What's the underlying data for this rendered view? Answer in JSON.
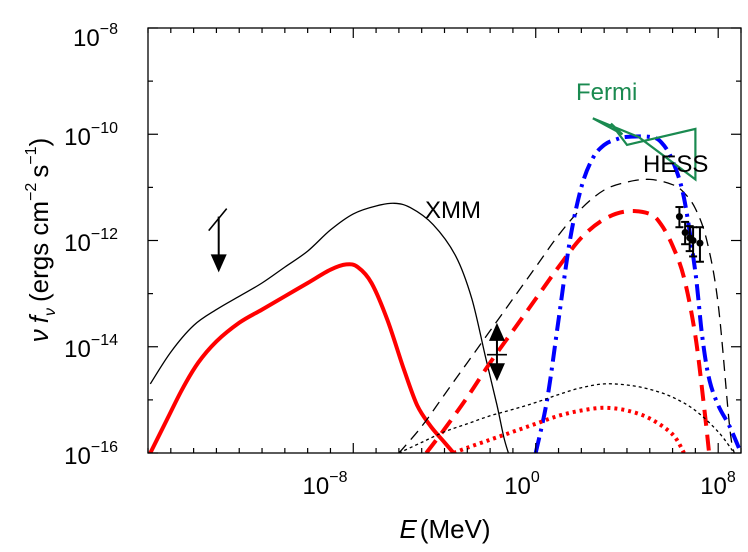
{
  "chart_data": {
    "type": "line",
    "xlabel": {
      "symbol": "E",
      "unit": "(MeV)"
    },
    "ylabel": {
      "nu": "ν",
      "f": "f",
      "sub": "ν",
      "units_open": "(ergs cm",
      "exp_cm": "−2",
      "s": "s",
      "exp_s": "−1",
      "units_close": ")"
    },
    "xscale": "log",
    "yscale": "log",
    "xlim_log10": [
      -17,
      9
    ],
    "ylim_log10": [
      -16,
      -8
    ],
    "x_ticks": [
      {
        "base": "10",
        "exp": "−8",
        "log10": -8
      },
      {
        "base": "10",
        "exp": "0",
        "log10": 0
      },
      {
        "base": "10",
        "exp": "8",
        "log10": 8
      }
    ],
    "y_ticks": [
      {
        "base": "10",
        "exp": "−8",
        "log10": -8
      },
      {
        "base": "10",
        "exp": "−10",
        "log10": -10
      },
      {
        "base": "10",
        "exp": "−12",
        "log10": -12
      },
      {
        "base": "10",
        "exp": "−14",
        "log10": -14
      },
      {
        "base": "10",
        "exp": "−16",
        "log10": -16
      }
    ],
    "grid": false,
    "annotations": [
      {
        "id": "xmm",
        "text": "XMM",
        "color": "#000000"
      },
      {
        "id": "fermi",
        "text": "Fermi",
        "color": "#1a8a50"
      },
      {
        "id": "hess",
        "text": "HESS",
        "color": "#000000"
      }
    ],
    "series": [
      {
        "id": "total-solid",
        "color": "#000000",
        "width": 1.3,
        "dash": "",
        "points": [
          [
            -16.9,
            -14.7
          ],
          [
            -16,
            -14.1
          ],
          [
            -15,
            -13.6
          ],
          [
            -14,
            -13.3
          ],
          [
            -13,
            -13.05
          ],
          [
            -12,
            -12.8
          ],
          [
            -11,
            -12.5
          ],
          [
            -10,
            -12.2
          ],
          [
            -9,
            -11.8
          ],
          [
            -8,
            -11.5
          ],
          [
            -7,
            -11.35
          ],
          [
            -6.2,
            -11.3
          ],
          [
            -5.5,
            -11.38
          ],
          [
            -4.5,
            -11.7
          ],
          [
            -3.5,
            -12.3
          ],
          [
            -2.8,
            -13.1
          ],
          [
            -2.2,
            -14.2
          ],
          [
            -1.7,
            -15.1
          ],
          [
            -1.4,
            -15.7
          ],
          [
            -1.2,
            -16
          ]
        ]
      },
      {
        "id": "synchrotron-red",
        "color": "#ff0000",
        "width": 4,
        "dash": "",
        "points": [
          [
            -16.9,
            -16
          ],
          [
            -16.2,
            -15.4
          ],
          [
            -15.5,
            -14.8
          ],
          [
            -14.8,
            -14.3
          ],
          [
            -14,
            -13.9
          ],
          [
            -13,
            -13.55
          ],
          [
            -12,
            -13.3
          ],
          [
            -11,
            -13.05
          ],
          [
            -10,
            -12.8
          ],
          [
            -9,
            -12.55
          ],
          [
            -8.3,
            -12.45
          ],
          [
            -7.8,
            -12.5
          ],
          [
            -7.2,
            -12.8
          ],
          [
            -6.5,
            -13.5
          ],
          [
            -5.8,
            -14.4
          ],
          [
            -5.2,
            -15.1
          ],
          [
            -4.6,
            -15.5
          ],
          [
            -4.0,
            -15.8
          ],
          [
            -3.6,
            -16
          ]
        ]
      },
      {
        "id": "ic-black-dashed",
        "color": "#000000",
        "width": 1.3,
        "dash": "11,7",
        "points": [
          [
            -6,
            -16
          ],
          [
            -5,
            -15.5
          ],
          [
            -4,
            -14.9
          ],
          [
            -3,
            -14.3
          ],
          [
            -2,
            -13.7
          ],
          [
            -1,
            -13.1
          ],
          [
            0,
            -12.5
          ],
          [
            1,
            -11.9
          ],
          [
            2,
            -11.4
          ],
          [
            3,
            -11.05
          ],
          [
            4,
            -10.9
          ],
          [
            5,
            -10.85
          ],
          [
            6,
            -10.95
          ],
          [
            6.5,
            -11.1
          ],
          [
            7,
            -11.4
          ],
          [
            7.5,
            -12
          ],
          [
            8,
            -13.2
          ],
          [
            8.5,
            -15.5
          ],
          [
            8.7,
            -16
          ]
        ]
      },
      {
        "id": "ic-red-dashed",
        "color": "#ff0000",
        "width": 4,
        "dash": "16,9",
        "points": [
          [
            -4.8,
            -16
          ],
          [
            -4,
            -15.55
          ],
          [
            -3,
            -14.95
          ],
          [
            -2,
            -14.3
          ],
          [
            -1,
            -13.7
          ],
          [
            0,
            -13.1
          ],
          [
            1,
            -12.5
          ],
          [
            2,
            -11.95
          ],
          [
            3,
            -11.6
          ],
          [
            4,
            -11.45
          ],
          [
            5,
            -11.5
          ],
          [
            5.5,
            -11.7
          ],
          [
            6,
            -12.1
          ],
          [
            6.5,
            -12.7
          ],
          [
            7,
            -13.8
          ],
          [
            7.4,
            -15.2
          ],
          [
            7.6,
            -16
          ]
        ]
      },
      {
        "id": "pion-blue-dashdot",
        "color": "#0000ff",
        "width": 4,
        "dash": "16,6,3,6",
        "points": [
          [
            0,
            -16
          ],
          [
            0.5,
            -15
          ],
          [
            1,
            -13.5
          ],
          [
            1.5,
            -12
          ],
          [
            2,
            -11
          ],
          [
            2.5,
            -10.45
          ],
          [
            3,
            -10.2
          ],
          [
            3.5,
            -10.1
          ],
          [
            4,
            -10.05
          ],
          [
            5,
            -10.05
          ],
          [
            5.5,
            -10.15
          ],
          [
            6,
            -10.5
          ],
          [
            6.5,
            -11.2
          ],
          [
            7,
            -12.6
          ],
          [
            7.3,
            -13.8
          ],
          [
            7.6,
            -14.6
          ],
          [
            8,
            -15.1
          ],
          [
            8.5,
            -15.5
          ],
          [
            9,
            -16
          ]
        ]
      },
      {
        "id": "bremss-black-dotted",
        "color": "#000000",
        "width": 1.3,
        "dash": "3,3",
        "points": [
          [
            -6,
            -16
          ],
          [
            -5,
            -15.8
          ],
          [
            -4,
            -15.6
          ],
          [
            -3,
            -15.45
          ],
          [
            -2,
            -15.3
          ],
          [
            -1,
            -15.18
          ],
          [
            0,
            -15.05
          ],
          [
            1,
            -14.9
          ],
          [
            2,
            -14.77
          ],
          [
            3,
            -14.7
          ],
          [
            4,
            -14.72
          ],
          [
            5,
            -14.8
          ],
          [
            6,
            -14.95
          ],
          [
            7,
            -15.2
          ],
          [
            8,
            -15.6
          ],
          [
            8.7,
            -16
          ]
        ]
      },
      {
        "id": "bremss-red-dotted",
        "color": "#ff0000",
        "width": 4,
        "dash": "3,4",
        "points": [
          [
            -3.6,
            -16
          ],
          [
            -3,
            -15.9
          ],
          [
            -2,
            -15.75
          ],
          [
            -1,
            -15.6
          ],
          [
            0,
            -15.45
          ],
          [
            1,
            -15.3
          ],
          [
            2,
            -15.2
          ],
          [
            3,
            -15.15
          ],
          [
            4,
            -15.2
          ],
          [
            5,
            -15.35
          ],
          [
            6,
            -15.65
          ],
          [
            6.5,
            -16
          ]
        ]
      }
    ],
    "fermi_butterfly": {
      "color": "#1a8a50",
      "outline": [
        [
          2.5,
          -9.7
        ],
        [
          3.8,
          -10.0
        ],
        [
          3.3,
          -9.8
        ],
        [
          4,
          -10.2
        ],
        [
          7,
          -9.9
        ],
        [
          7,
          -10.85
        ],
        [
          4.5,
          -10.05
        ],
        [
          2.5,
          -9.7
        ]
      ]
    },
    "upper_limits": [
      {
        "x": -13.9,
        "y_top": -11.55,
        "y_bottom": -12.6,
        "slash": true
      }
    ],
    "xmm_limits": {
      "x": -1.7,
      "lower_tip": -13.55,
      "upper_tip": -14.65,
      "center": -14.15
    },
    "hess_points": [
      {
        "x": 6.3,
        "y": -11.55,
        "err_up": 0.18,
        "err_dn": 0.2,
        "xerr": 0.12
      },
      {
        "x": 6.55,
        "y": -11.85,
        "err_up": 0.2,
        "err_dn": 0.22,
        "xerr": 0.12
      },
      {
        "x": 6.75,
        "y": -11.95,
        "err_up": 0.22,
        "err_dn": 0.25,
        "xerr": 0.12
      },
      {
        "x": 6.9,
        "y": -12.0,
        "err_up": 0.25,
        "err_dn": 0.3,
        "xerr": 0.1
      },
      {
        "x": 7.2,
        "y": -12.05,
        "err_up": 0.3,
        "err_dn": 0.35,
        "xerr": 0.1
      }
    ]
  }
}
